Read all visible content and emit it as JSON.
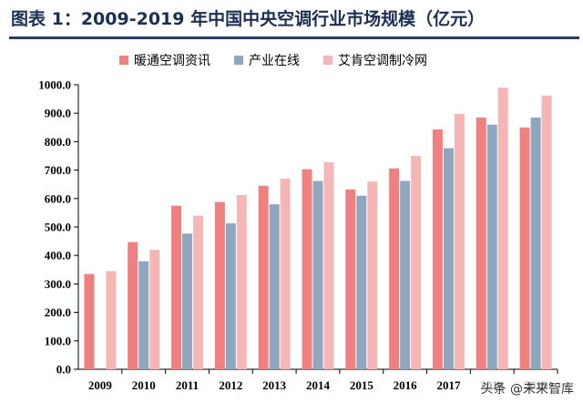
{
  "header": {
    "title": "图表 1：2009-2019 年中国中央空调行业市场规模（亿元）"
  },
  "watermark": "头条 @未来智库",
  "chart_data": {
    "type": "bar",
    "title": "图表 1：2009-2019 年中国中央空调行业市场规模（亿元）",
    "xlabel": "",
    "ylabel": "",
    "categories": [
      "2009",
      "2010",
      "2011",
      "2012",
      "2013",
      "2014",
      "2015",
      "2016",
      "2017",
      "2018",
      "2019"
    ],
    "series": [
      {
        "name": "暖通空调资讯",
        "color": "#f08080",
        "values": [
          335,
          447,
          575,
          588,
          645,
          703,
          632,
          706,
          843,
          885,
          850
        ]
      },
      {
        "name": "产业在线",
        "color": "#8fa6bf",
        "values": [
          null,
          380,
          477,
          513,
          580,
          662,
          610,
          662,
          777,
          860,
          885
        ]
      },
      {
        "name": "艾肯空调制冷网",
        "color": "#f7b6b6",
        "values": [
          345,
          420,
          540,
          612,
          670,
          728,
          660,
          750,
          898,
          990,
          962
        ]
      }
    ],
    "ylim": [
      0,
      1000
    ],
    "yticks": [
      "0.0",
      "100.0",
      "200.0",
      "300.0",
      "400.0",
      "500.0",
      "600.0",
      "700.0",
      "800.0",
      "900.0",
      "1000.0"
    ],
    "grid": false,
    "legend_position": "top"
  }
}
